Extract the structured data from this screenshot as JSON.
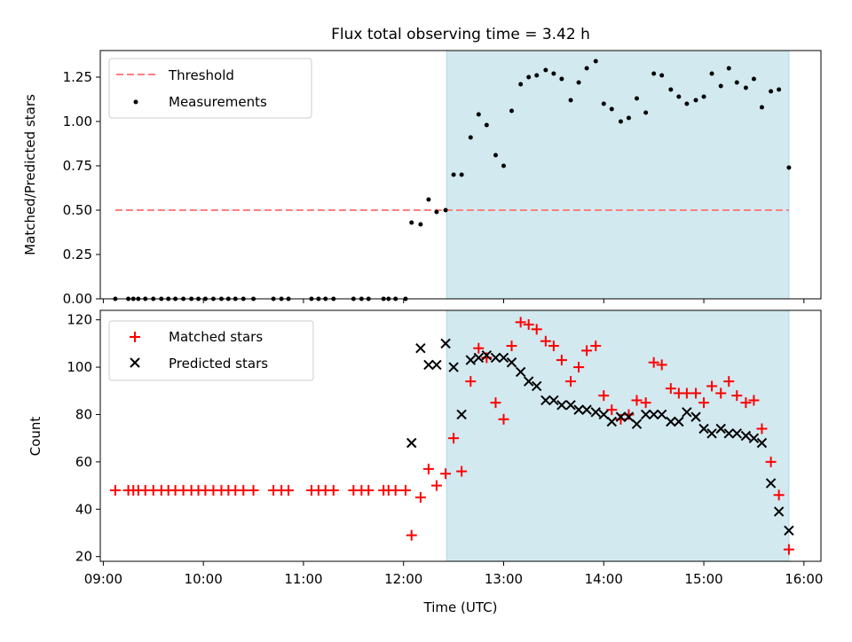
{
  "title": "Flux total observing time = 3.42 h",
  "colors": {
    "threshold": "#ff7f7f",
    "shade": "#d2e9f0",
    "shade_edge": "#add8e6",
    "matched": "#ff0000",
    "predicted": "#000000",
    "measurement": "#000000"
  },
  "chart_data": [
    {
      "type": "scatter",
      "ylabel": "Matched/Predicted stars",
      "xlim": [
        8.97,
        16.17
      ],
      "ylim": [
        0,
        1.4
      ],
      "yticks": [
        "0.00",
        "0.25",
        "0.50",
        "0.75",
        "1.00",
        "1.25"
      ],
      "ytick_values": [
        0,
        0.25,
        0.5,
        0.75,
        1.0,
        1.25
      ],
      "shaded_span": [
        12.43,
        15.85
      ],
      "legend": {
        "placement": "upper left",
        "entries": [
          "Threshold",
          "Measurements"
        ]
      },
      "threshold": {
        "name": "Threshold",
        "value": 0.5,
        "x_range": [
          9.12,
          15.85
        ]
      },
      "series": [
        {
          "name": "Measurements",
          "x": [
            9.12,
            9.25,
            9.3,
            9.35,
            9.42,
            9.5,
            9.58,
            9.65,
            9.72,
            9.8,
            9.88,
            9.95,
            10.02,
            10.1,
            10.18,
            10.25,
            10.32,
            10.4,
            10.5,
            10.7,
            10.78,
            10.85,
            11.08,
            11.15,
            11.22,
            11.3,
            11.5,
            11.58,
            11.65,
            11.8,
            11.85,
            11.92,
            12.02,
            12.08,
            12.17,
            12.25,
            12.33,
            12.42,
            12.5,
            12.58,
            12.67,
            12.75,
            12.83,
            12.92,
            13.0,
            13.08,
            13.17,
            13.25,
            13.33,
            13.42,
            13.5,
            13.58,
            13.67,
            13.75,
            13.83,
            13.92,
            14.0,
            14.08,
            14.17,
            14.25,
            14.33,
            14.42,
            14.5,
            14.58,
            14.67,
            14.75,
            14.83,
            14.92,
            15.0,
            15.08,
            15.17,
            15.25,
            15.33,
            15.42,
            15.5,
            15.58,
            15.67,
            15.75,
            15.85
          ],
          "y": [
            0,
            0,
            0,
            0,
            0,
            0,
            0,
            0,
            0,
            0,
            0,
            0,
            0,
            0,
            0,
            0,
            0,
            0,
            0,
            0,
            0,
            0,
            0,
            0,
            0,
            0,
            0,
            0,
            0,
            0,
            0,
            0,
            0,
            0.43,
            0.42,
            0.56,
            0.49,
            0.5,
            0.7,
            0.7,
            0.91,
            1.04,
            0.98,
            0.81,
            0.75,
            1.06,
            1.21,
            1.25,
            1.26,
            1.29,
            1.27,
            1.24,
            1.12,
            1.22,
            1.3,
            1.34,
            1.1,
            1.07,
            1.0,
            1.02,
            1.13,
            1.05,
            1.27,
            1.26,
            1.18,
            1.14,
            1.1,
            1.12,
            1.14,
            1.27,
            1.2,
            1.3,
            1.22,
            1.19,
            1.24,
            1.08,
            1.17,
            1.18,
            0.74
          ]
        }
      ]
    },
    {
      "type": "scatter",
      "xlabel": "Time (UTC)",
      "ylabel": "Count",
      "xlim": [
        8.97,
        16.17
      ],
      "ylim": [
        18,
        124
      ],
      "xticks": [
        "09:00",
        "10:00",
        "11:00",
        "12:00",
        "13:00",
        "14:00",
        "15:00",
        "16:00"
      ],
      "xtick_values": [
        9,
        10,
        11,
        12,
        13,
        14,
        15,
        16
      ],
      "yticks": [
        "20",
        "40",
        "60",
        "80",
        "100",
        "120"
      ],
      "ytick_values": [
        20,
        40,
        60,
        80,
        100,
        120
      ],
      "shaded_span": [
        12.43,
        15.85
      ],
      "legend": {
        "placement": "upper left",
        "entries": [
          "Matched stars",
          "Predicted stars"
        ]
      },
      "series": [
        {
          "name": "Matched stars",
          "marker": "+",
          "x": [
            9.12,
            9.25,
            9.3,
            9.35,
            9.42,
            9.5,
            9.58,
            9.65,
            9.72,
            9.8,
            9.88,
            9.95,
            10.02,
            10.1,
            10.18,
            10.25,
            10.32,
            10.4,
            10.5,
            10.7,
            10.78,
            10.85,
            11.08,
            11.15,
            11.22,
            11.3,
            11.5,
            11.58,
            11.65,
            11.8,
            11.85,
            11.92,
            12.02,
            12.08,
            12.17,
            12.25,
            12.33,
            12.42,
            12.5,
            12.58,
            12.67,
            12.75,
            12.83,
            12.92,
            13.0,
            13.08,
            13.17,
            13.25,
            13.33,
            13.42,
            13.5,
            13.58,
            13.67,
            13.75,
            13.83,
            13.92,
            14.0,
            14.08,
            14.17,
            14.25,
            14.33,
            14.42,
            14.5,
            14.58,
            14.67,
            14.75,
            14.83,
            14.92,
            15.0,
            15.08,
            15.17,
            15.25,
            15.33,
            15.42,
            15.5,
            15.58,
            15.67,
            15.75,
            15.8,
            15.85
          ],
          "y": [
            48,
            48,
            48,
            48,
            48,
            48,
            48,
            48,
            48,
            48,
            48,
            48,
            48,
            48,
            48,
            48,
            48,
            48,
            48,
            48,
            48,
            48,
            48,
            48,
            48,
            48,
            48,
            48,
            48,
            48,
            48,
            48,
            48,
            29,
            45,
            57,
            50,
            55,
            70,
            56,
            94,
            108,
            104,
            85,
            78,
            109,
            119,
            118,
            116,
            111,
            109,
            103,
            94,
            100,
            107,
            109,
            88,
            82,
            78,
            80,
            86,
            85,
            102,
            101,
            91,
            89,
            89,
            89,
            85,
            92,
            89,
            94,
            88,
            85,
            86,
            74,
            60,
            46,
            null,
            23
          ]
        },
        {
          "name": "Predicted stars",
          "marker": "x",
          "x": [
            12.08,
            12.17,
            12.25,
            12.33,
            12.42,
            12.5,
            12.58,
            12.67,
            12.75,
            12.83,
            12.92,
            13.0,
            13.08,
            13.17,
            13.25,
            13.33,
            13.42,
            13.5,
            13.58,
            13.67,
            13.75,
            13.83,
            13.92,
            14.0,
            14.08,
            14.17,
            14.25,
            14.33,
            14.42,
            14.5,
            14.58,
            14.67,
            14.75,
            14.83,
            14.92,
            15.0,
            15.08,
            15.17,
            15.25,
            15.33,
            15.42,
            15.5,
            15.58,
            15.67,
            15.75,
            15.85
          ],
          "y": [
            68,
            108,
            101,
            101,
            110,
            100,
            80,
            103,
            104,
            105,
            104,
            104,
            102,
            98,
            94,
            92,
            86,
            86,
            84,
            84,
            82,
            82,
            81,
            80,
            77,
            79,
            79,
            76,
            80,
            80,
            80,
            77,
            77,
            81,
            79,
            74,
            72,
            74,
            72,
            72,
            71,
            70,
            68,
            51,
            39,
            31
          ]
        }
      ]
    }
  ]
}
